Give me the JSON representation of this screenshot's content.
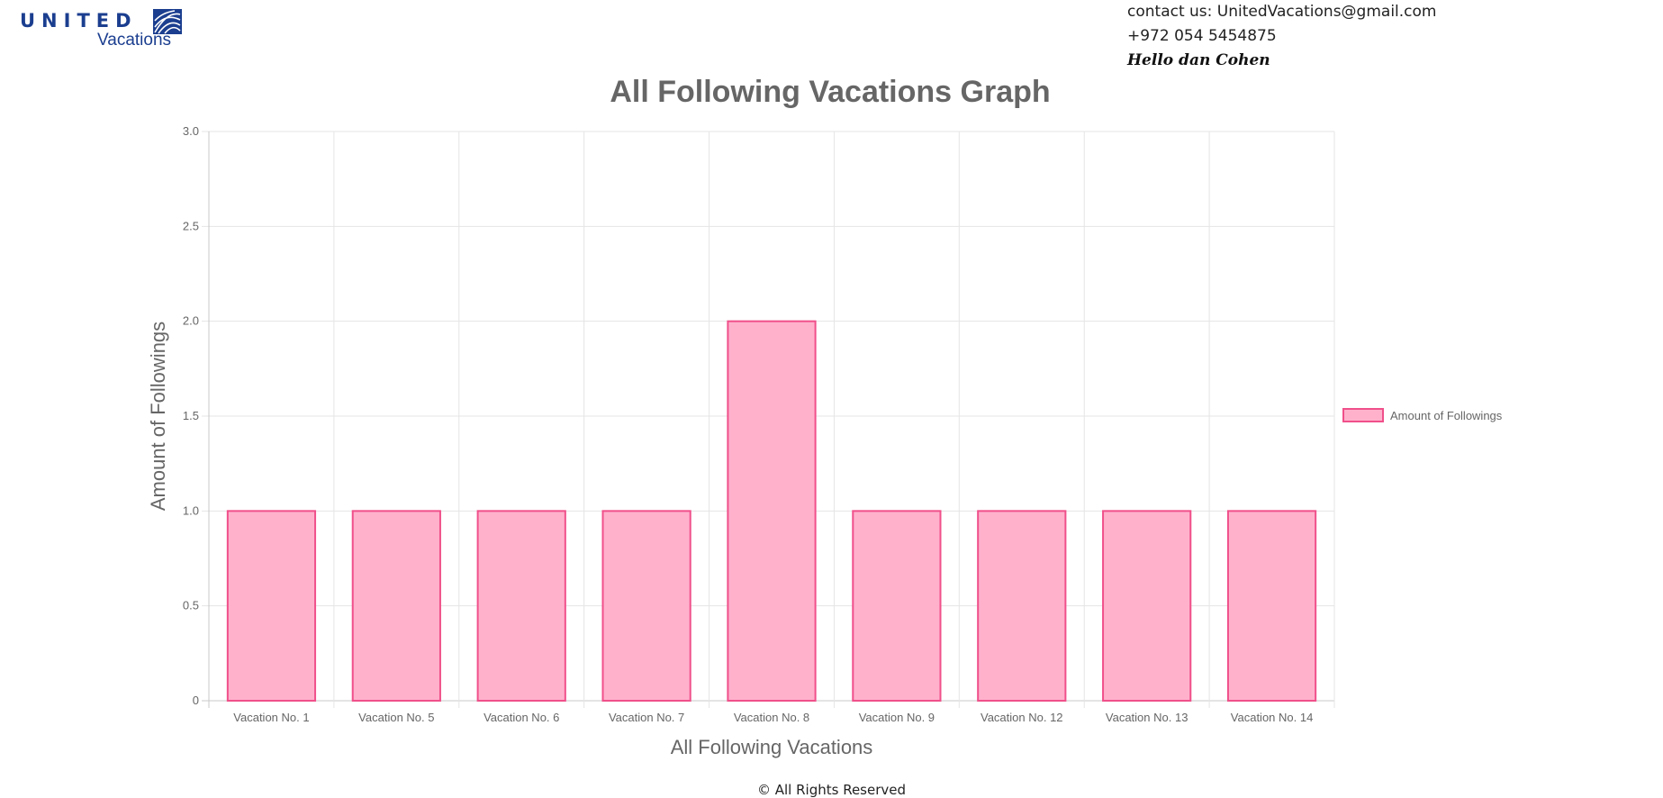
{
  "header": {
    "logo_word": "UNITED",
    "logo_sub": "Vacations",
    "contact_line": "contact us: UnitedVacations@gmail.com",
    "phone": "+972 054 5454875",
    "greeting": "Hello dan Cohen"
  },
  "footer": {
    "text": "© All Rights Reserved"
  },
  "colors": {
    "brand": "#1b3e8f",
    "bar_fill": "#ffb1cc",
    "bar_border": "#f0508a",
    "grid": "#e5e5e5",
    "axis_text": "#666666"
  },
  "chart_data": {
    "type": "bar",
    "title": "All Following Vacations Graph",
    "xlabel": "All Following Vacations",
    "ylabel": "Amount of Followings",
    "categories": [
      "Vacation No. 1",
      "Vacation No. 5",
      "Vacation No. 6",
      "Vacation No. 7",
      "Vacation No. 8",
      "Vacation No. 9",
      "Vacation No. 12",
      "Vacation No. 13",
      "Vacation No. 14"
    ],
    "series": [
      {
        "name": "Amount of Followings",
        "values": [
          1,
          1,
          1,
          1,
          2,
          1,
          1,
          1,
          1
        ]
      }
    ],
    "ylim": [
      0,
      3
    ],
    "yticks": [
      "0",
      "0.5",
      "1.0",
      "1.5",
      "2.0",
      "2.5",
      "3.0"
    ],
    "grid": true,
    "legend_position": "right"
  }
}
